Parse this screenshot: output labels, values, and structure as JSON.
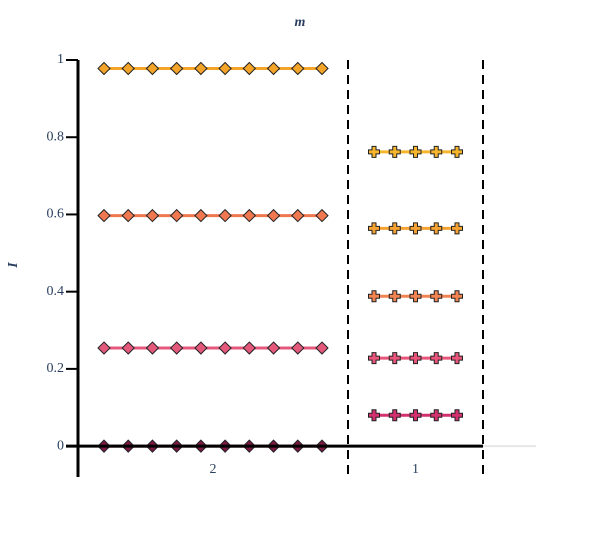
{
  "chart_data": {
    "type": "line",
    "title": "m",
    "y_label": "I",
    "ylim": [
      -0.08,
      1
    ],
    "yticks": [
      0,
      0.2,
      0.4,
      0.6,
      0.8,
      1
    ],
    "groups": [
      {
        "category": "2",
        "marker": "diamond",
        "series": [
          {
            "color": "#f4a428",
            "values": [
              0.978,
              0.978,
              0.978,
              0.978,
              0.978,
              0.978,
              0.978,
              0.978,
              0.978,
              0.978
            ]
          },
          {
            "color": "#f07850",
            "values": [
              0.597,
              0.597,
              0.597,
              0.597,
              0.597,
              0.597,
              0.597,
              0.597,
              0.597,
              0.597
            ]
          },
          {
            "color": "#e4587c",
            "values": [
              0.254,
              0.254,
              0.254,
              0.254,
              0.254,
              0.254,
              0.254,
              0.254,
              0.254,
              0.254
            ]
          },
          {
            "color": "#7c1a44",
            "values": [
              0,
              0,
              0,
              0,
              0,
              0,
              0,
              0,
              0,
              0
            ]
          }
        ]
      },
      {
        "category": "1",
        "marker": "cross",
        "series": [
          {
            "color": "#f6b52a",
            "values": [
              0.762,
              0.762,
              0.762,
              0.762,
              0.762
            ]
          },
          {
            "color": "#f6a232",
            "values": [
              0.564,
              0.564,
              0.564,
              0.564,
              0.564
            ]
          },
          {
            "color": "#f28452",
            "values": [
              0.388,
              0.388,
              0.388,
              0.388,
              0.388
            ]
          },
          {
            "color": "#e8547a",
            "values": [
              0.228,
              0.228,
              0.228,
              0.228,
              0.228
            ]
          },
          {
            "color": "#d2306e",
            "values": [
              0.08,
              0.08,
              0.08,
              0.08,
              0.08
            ]
          }
        ]
      }
    ]
  }
}
